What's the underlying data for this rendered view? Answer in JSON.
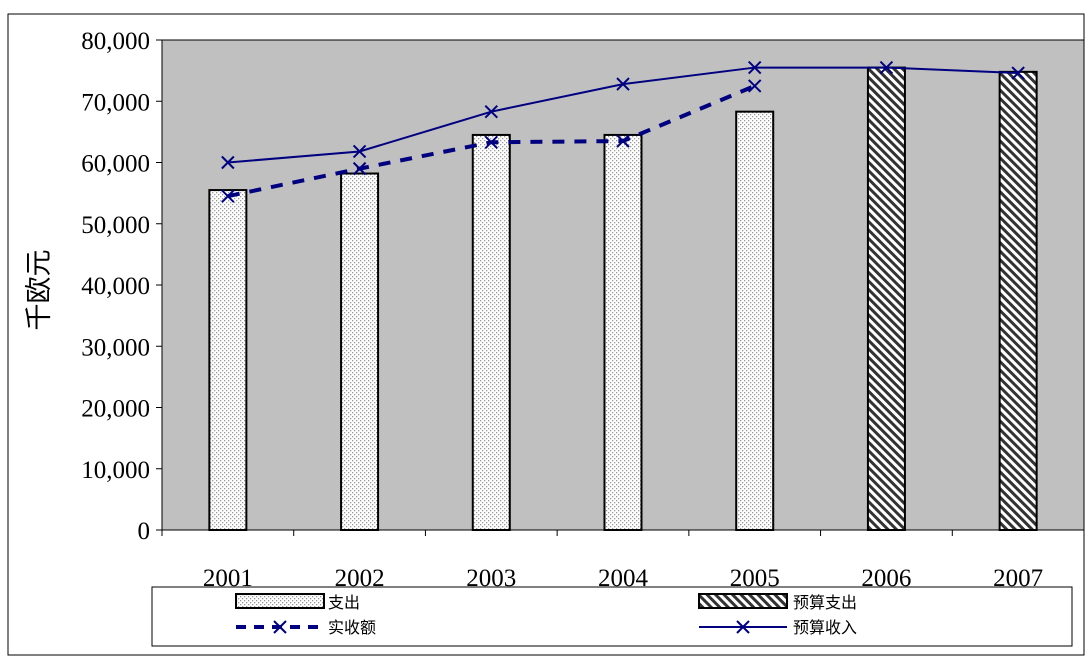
{
  "chart_data": {
    "type": "bar",
    "categories": [
      "2001",
      "2002",
      "2003",
      "2004",
      "2005",
      "2006",
      "2007"
    ],
    "ylabel": "千欧元",
    "xlabel": "",
    "ylim": [
      0,
      80000
    ],
    "yticks": [
      0,
      10000,
      20000,
      30000,
      40000,
      50000,
      60000,
      70000,
      80000
    ],
    "ytick_labels": [
      "0",
      "10,000",
      "20,000",
      "30,000",
      "40,000",
      "50,000",
      "60,000",
      "70,000",
      "80,000"
    ],
    "grid": false,
    "plot_background": "#c0c0c0",
    "legend_position": "bottom",
    "series": [
      {
        "name": "支出",
        "kind": "bar",
        "pattern": "dots",
        "values": [
          55500,
          58200,
          64500,
          64500,
          68300,
          null,
          null
        ]
      },
      {
        "name": "预算支出",
        "kind": "bar",
        "pattern": "hatch",
        "values": [
          null,
          null,
          null,
          null,
          null,
          75500,
          74800
        ]
      },
      {
        "name": "实收额",
        "kind": "line",
        "style": "dashed",
        "color": "#000080",
        "marker": "x",
        "values": [
          54500,
          59000,
          63300,
          63500,
          72500,
          null,
          null
        ]
      },
      {
        "name": "预算收入",
        "kind": "line",
        "style": "solid",
        "color": "#000080",
        "marker": "x",
        "values": [
          60000,
          61800,
          68300,
          72800,
          75500,
          75500,
          74600
        ]
      }
    ]
  }
}
